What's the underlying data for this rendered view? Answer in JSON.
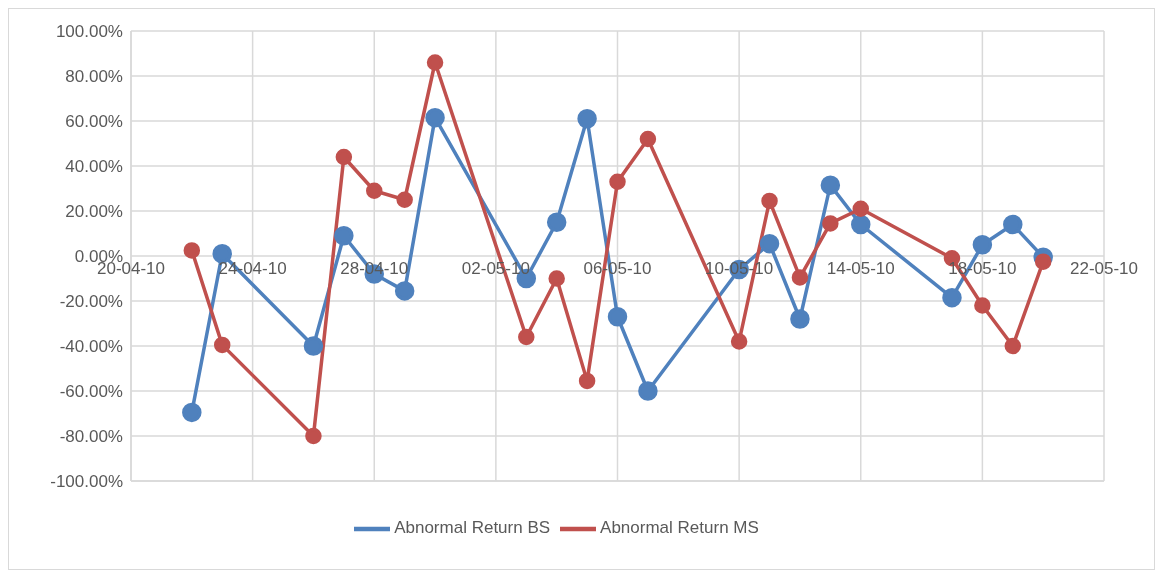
{
  "chart_data": {
    "type": "line",
    "xlim": [
      "--04-20",
      "--05-22"
    ],
    "xticks": [
      {
        "value": "--04-20",
        "label": "20-04-10"
      },
      {
        "value": "--04-24",
        "label": "24-04-10"
      },
      {
        "value": "--04-28",
        "label": "28-04-10"
      },
      {
        "value": "--05-02",
        "label": "02-05-10"
      },
      {
        "value": "--05-06",
        "label": "06-05-10"
      },
      {
        "value": "--05-10",
        "label": "10-05-10"
      },
      {
        "value": "--05-14",
        "label": "14-05-10"
      },
      {
        "value": "--05-18",
        "label": "18-05-10"
      },
      {
        "value": "--05-22",
        "label": "22-05-10"
      }
    ],
    "ylim": [
      -100,
      100
    ],
    "yticks": [
      {
        "value": -100,
        "label": "-100.00%"
      },
      {
        "value": -80,
        "label": "-80.00%"
      },
      {
        "value": -60,
        "label": "-60.00%"
      },
      {
        "value": -40,
        "label": "-40.00%"
      },
      {
        "value": -20,
        "label": "-20.00%"
      },
      {
        "value": 0,
        "label": "0.00%"
      },
      {
        "value": 20,
        "label": "20.00%"
      },
      {
        "value": 40,
        "label": "40.00%"
      },
      {
        "value": 60,
        "label": "60.00%"
      },
      {
        "value": 80,
        "label": "80.00%"
      },
      {
        "value": 100,
        "label": "100.00%"
      }
    ],
    "grid": true,
    "legend": "bottom",
    "marker": "circle",
    "line_style": "solid",
    "series": [
      {
        "name": "Abnormal Return BS",
        "color": "#4f81bd",
        "x": [
          "--04-22",
          "--04-23",
          "--04-26",
          "--04-27",
          "--04-28",
          "--04-29",
          "--04-30",
          "--05-03",
          "--05-04",
          "--05-05",
          "--05-06",
          "--05-07",
          "--05-10",
          "--05-11",
          "--05-12",
          "--05-13",
          "--05-14",
          "--05-17",
          "--05-18",
          "--05-19",
          "--05-20"
        ],
        "values": [
          -69.5,
          1,
          -40,
          9,
          -8,
          -15.5,
          61.5,
          -10,
          15,
          61,
          -27,
          -60,
          -6,
          5.5,
          -28,
          31.5,
          14,
          -18.5,
          5,
          14,
          -0.5
        ]
      },
      {
        "name": "Abnormal Return MS",
        "color": "#c0504d",
        "x": [
          "--04-22",
          "--04-23",
          "--04-26",
          "--04-27",
          "--04-28",
          "--04-29",
          "--04-30",
          "--05-03",
          "--05-04",
          "--05-05",
          "--05-06",
          "--05-07",
          "--05-10",
          "--05-11",
          "--05-12",
          "--05-13",
          "--05-14",
          "--05-17",
          "--05-18",
          "--05-19",
          "--05-20"
        ],
        "values": [
          2.5,
          -39.5,
          -80,
          44,
          29,
          25,
          86,
          -36,
          -10,
          -55.5,
          33,
          52,
          -38,
          24.5,
          -9.5,
          14.5,
          21,
          -1,
          -22,
          -40,
          -2.5
        ]
      }
    ]
  }
}
